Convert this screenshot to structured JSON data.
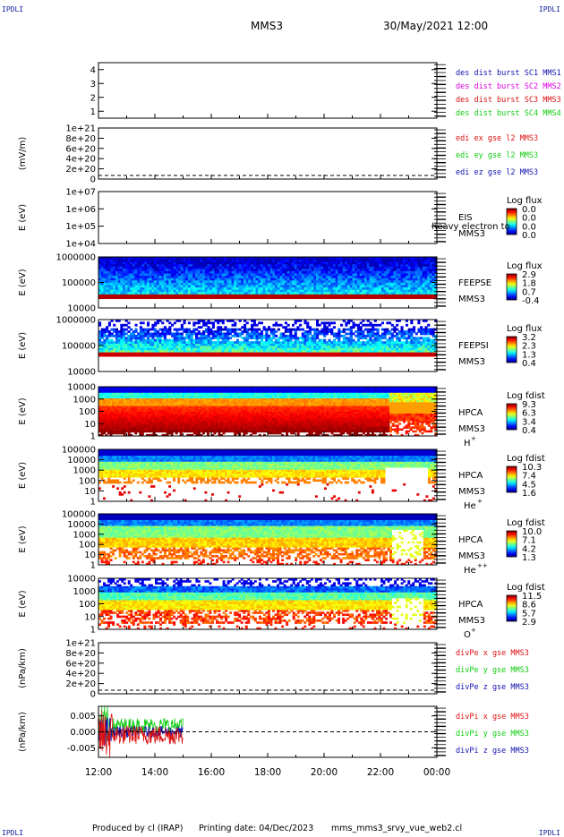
{
  "corner_label": "IPDLI",
  "header": {
    "spacecraft": "MMS3",
    "date": "30/May/2021 12:00"
  },
  "footer": {
    "produced_by": "Produced by cl (IRAP)",
    "printing_date": "Printing date: 04/Dec/2023",
    "script_name": "mms_mms3_srvy_vue_web2.cl"
  },
  "colors": {
    "blue": "#1212b0",
    "magenta": "#e000e0",
    "red": "#dd1111",
    "green": "#11cc11"
  },
  "chart_data": [
    {
      "type": "line",
      "ylim": [
        0.5,
        4.5
      ],
      "yticks": [
        "1",
        "2",
        "3",
        "4"
      ],
      "legend": [
        {
          "text": "des dist burst SC1 MMS1",
          "color": "blue"
        },
        {
          "text": "des dist burst SC2 MMS2",
          "color": "magenta"
        },
        {
          "text": "des dist burst SC3 MMS3",
          "color": "red"
        },
        {
          "text": "des dist burst SC4 MMS4",
          "color": "green"
        }
      ],
      "series": []
    },
    {
      "type": "line",
      "ylabel": "(mV/m)",
      "yticks": [
        "1e+21",
        "8e+20",
        "6e+20",
        "4e+20",
        "2e+20",
        "0"
      ],
      "legend": [
        {
          "text": "edi ex gse l2 MMS3",
          "color": "red"
        },
        {
          "text": "edi ey gse l2 MMS3",
          "color": "green"
        },
        {
          "text": "edi ez gse l2 MMS3",
          "color": "blue"
        }
      ],
      "zero_line": true,
      "series": []
    },
    {
      "type": "heatmap",
      "ylabel": "E (eV)",
      "yticks": [
        "1e+07",
        "1e+06",
        "1e+05",
        "1e+04"
      ],
      "colorbar": {
        "title": "Log flux",
        "ticks": [
          "0.0",
          "0.0",
          "0.0",
          "0.0"
        ]
      },
      "labels": [
        "EIS",
        "MMS3"
      ],
      "overlay_text": "heavy electron to",
      "empty": true
    },
    {
      "type": "heatmap",
      "ylabel": "E (eV)",
      "yticks": [
        "1000000",
        "100000",
        "10000"
      ],
      "colorbar": {
        "title": "Log flux",
        "ticks": [
          "2.9",
          "1.8",
          "0.7",
          "-0.4"
        ]
      },
      "labels": [
        "FEEPSE",
        "MMS3"
      ],
      "data_until": "24:00"
    },
    {
      "type": "heatmap",
      "ylabel": "E (eV)",
      "yticks": [
        "1000000",
        "100000",
        "10000"
      ],
      "colorbar": {
        "title": "Log flux",
        "ticks": [
          "3.2",
          "2.3",
          "1.3",
          "0.4"
        ]
      },
      "labels": [
        "FEEPSI",
        "MMS3"
      ],
      "data_until": "24:00"
    },
    {
      "type": "heatmap",
      "ylabel": "E (eV)",
      "yticks": [
        "10000",
        "1000",
        "100",
        "10",
        "1"
      ],
      "colorbar": {
        "title": "Log fdist",
        "ticks": [
          "9.3",
          "6.3",
          "3.4",
          "0.4"
        ]
      },
      "labels": [
        "HPCA",
        "MMS3"
      ],
      "species": "H",
      "species_sup": "+"
    },
    {
      "type": "heatmap",
      "ylabel": "E (eV)",
      "yticks": [
        "100000",
        "10000",
        "1000",
        "100",
        "10",
        "1"
      ],
      "colorbar": {
        "title": "Log fdist",
        "ticks": [
          "10.3",
          "7.4",
          "4.5",
          "1.6"
        ]
      },
      "labels": [
        "HPCA",
        "MMS3"
      ],
      "species": "He",
      "species_sup": "+"
    },
    {
      "type": "heatmap",
      "ylabel": "E (eV)",
      "yticks": [
        "100000",
        "10000",
        "1000",
        "100",
        "10",
        "1"
      ],
      "colorbar": {
        "title": "Log fdist",
        "ticks": [
          "10.0",
          "7.1",
          "4.2",
          "1.3"
        ]
      },
      "labels": [
        "HPCA",
        "MMS3"
      ],
      "species": "He",
      "species_sup": "++"
    },
    {
      "type": "heatmap",
      "ylabel": "E (eV)",
      "yticks": [
        "10000",
        "1000",
        "100",
        "10",
        "1"
      ],
      "colorbar": {
        "title": "Log fdist",
        "ticks": [
          "11.5",
          "8.6",
          "5.7",
          "2.9"
        ]
      },
      "labels": [
        "HPCA",
        "MMS3"
      ],
      "species": "O",
      "species_sup": "+"
    },
    {
      "type": "line",
      "ylabel": "(nPa/km)",
      "yticks": [
        "1e+21",
        "8e+20",
        "6e+20",
        "4e+20",
        "2e+20",
        "0"
      ],
      "legend": [
        {
          "text": "divPe x gse MMS3",
          "color": "red"
        },
        {
          "text": "divPe y gse MMS3",
          "color": "green"
        },
        {
          "text": "divPe z gse MMS3",
          "color": "blue"
        }
      ],
      "zero_line": true,
      "series": []
    },
    {
      "type": "line",
      "ylabel": "(nPa/km)",
      "ylim": [
        -0.008,
        0.008
      ],
      "yticks": [
        "0.005",
        "0.000",
        "-0.005"
      ],
      "legend": [
        {
          "text": "divPi x gse MMS3",
          "color": "red"
        },
        {
          "text": "divPi y gse MMS3",
          "color": "green"
        },
        {
          "text": "divPi z gse MMS3",
          "color": "blue"
        }
      ],
      "zero_line": true,
      "series": [
        {
          "color": "green",
          "x_range": [
            "12:00",
            "15:00"
          ],
          "amplitude": 0.004,
          "offset": 0.002
        },
        {
          "color": "blue",
          "x_range": [
            "12:00",
            "15:00"
          ],
          "amplitude": 0.003,
          "offset": 0.0
        },
        {
          "color": "red",
          "x_range": [
            "12:00",
            "15:00"
          ],
          "amplitude": 0.005,
          "offset": -0.001
        }
      ]
    }
  ],
  "xaxis": {
    "ticks": [
      "12:00",
      "14:00",
      "16:00",
      "18:00",
      "20:00",
      "22:00",
      "00:00"
    ]
  }
}
